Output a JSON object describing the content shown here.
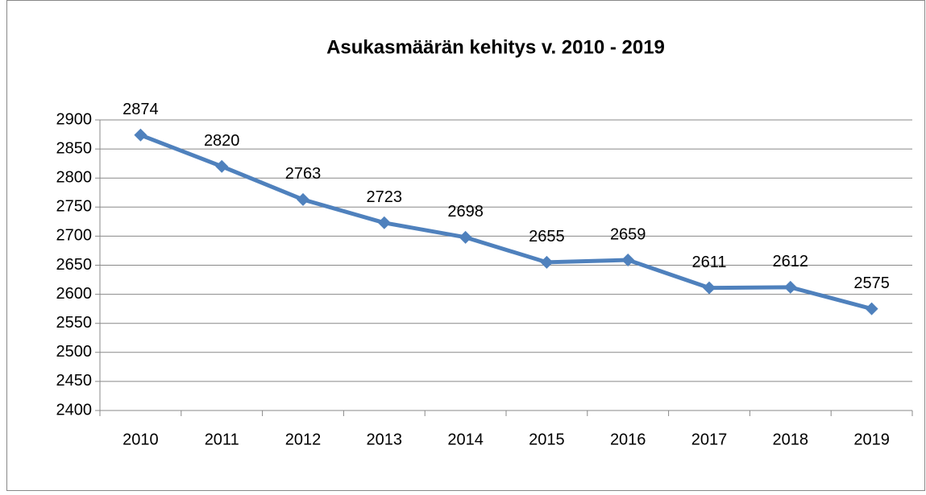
{
  "chart_data": {
    "type": "line",
    "title": "Asukasmäärän kehitys v. 2010 - 2019",
    "categories": [
      "2010",
      "2011",
      "2012",
      "2013",
      "2014",
      "2015",
      "2016",
      "2017",
      "2018",
      "2019"
    ],
    "values": [
      2874,
      2820,
      2763,
      2723,
      2698,
      2655,
      2659,
      2611,
      2612,
      2575
    ],
    "color": "#4f81bd",
    "ylim": [
      2400,
      2900
    ],
    "yticks": [
      2400,
      2450,
      2500,
      2550,
      2600,
      2650,
      2700,
      2750,
      2800,
      2850,
      2900
    ],
    "grid": true
  }
}
